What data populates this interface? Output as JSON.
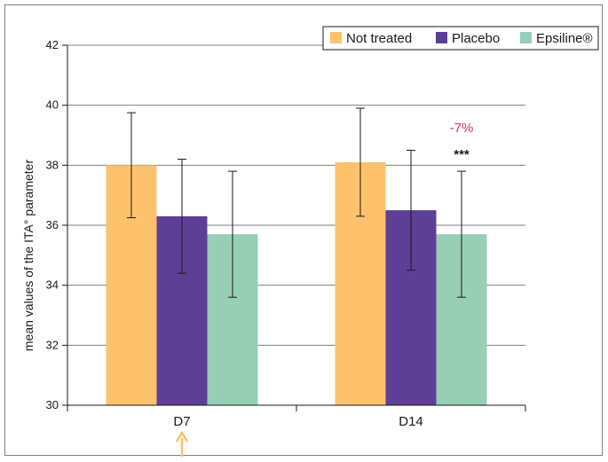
{
  "chart_data": {
    "type": "bar",
    "categories": [
      "D7",
      "D14"
    ],
    "ylabel": "mean values of the ITA° parameter",
    "ylim": [
      30,
      42
    ],
    "yticks": [
      "30",
      "32",
      "34",
      "36",
      "38",
      "40",
      "42"
    ],
    "series": [
      {
        "name": "Not treated",
        "color": "#fdc26b",
        "values": [
          38.0,
          38.1
        ],
        "error": [
          1.75,
          1.8
        ]
      },
      {
        "name": "Placebo",
        "color": "#5e3f96",
        "values": [
          36.3,
          36.5
        ],
        "error": [
          1.9,
          2.0
        ]
      },
      {
        "name": "Epsiline®",
        "color": "#96cfb4",
        "values": [
          35.7,
          35.7
        ],
        "error": [
          2.1,
          2.1
        ]
      }
    ],
    "annotations": {
      "percent": "-7%",
      "percent_color": "#d6336c",
      "significance": "***"
    },
    "arrow_color": "#fdc26b",
    "legend_position": "top-right",
    "grid": true
  }
}
